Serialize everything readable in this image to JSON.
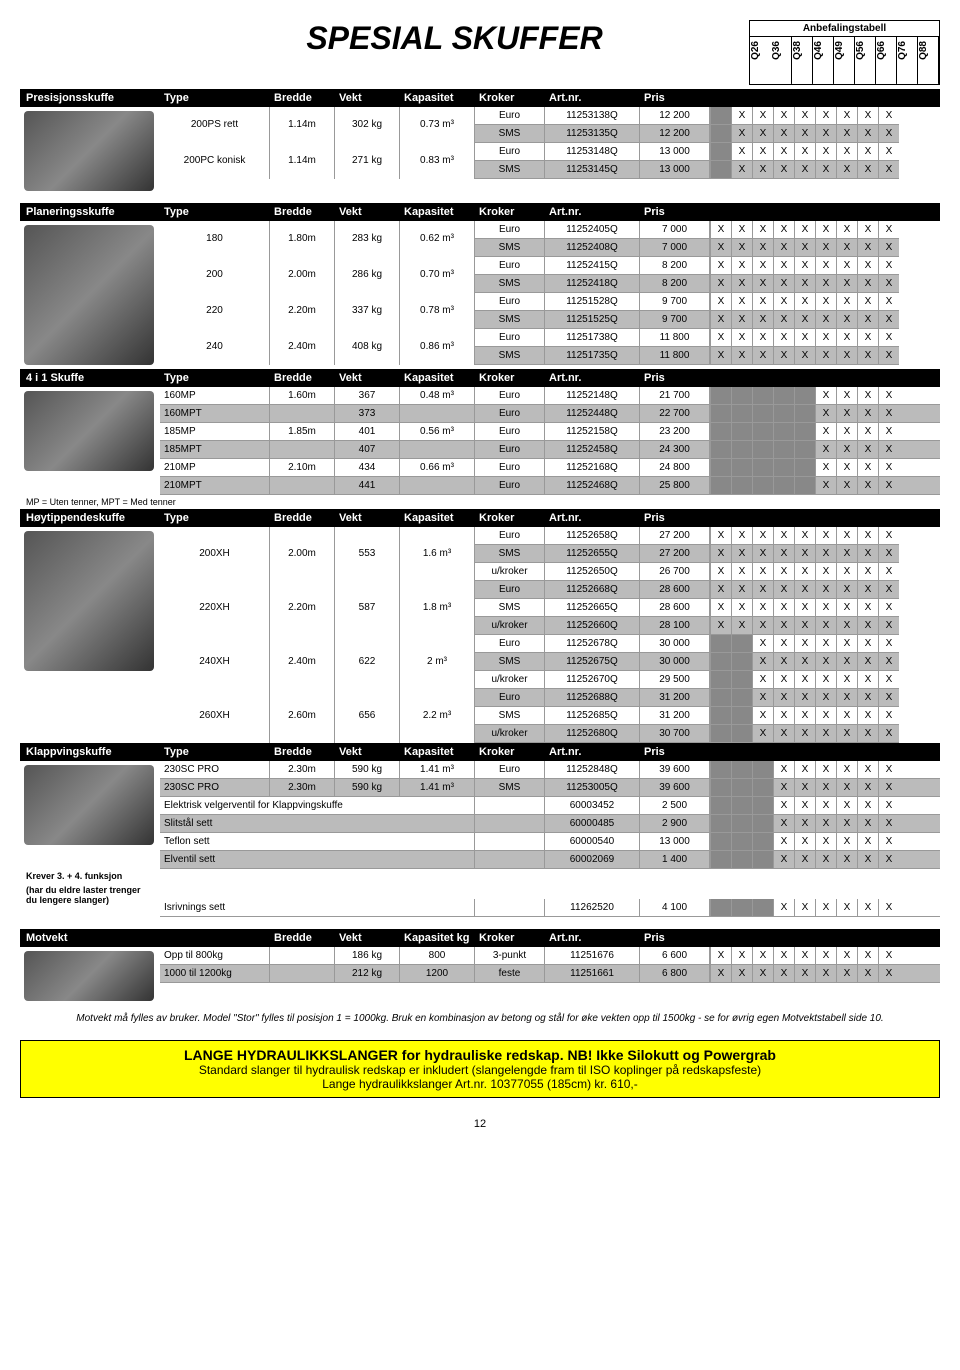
{
  "title": "SPESIAL SKUFFER",
  "rec_label": "Anbefalingstabell",
  "rec_models": [
    "Q26",
    "Q36",
    "Q38",
    "Q46",
    "Q49",
    "Q56",
    "Q66",
    "Q76",
    "Q88"
  ],
  "headers": {
    "type": "Type",
    "bredde": "Bredde",
    "vekt": "Vekt",
    "kap": "Kapasitet",
    "kroker": "Kroker",
    "artnr": "Art.nr.",
    "pris": "Pris",
    "kapkg": "Kapasitet kg"
  },
  "sections": {
    "presisjon": {
      "label": "Presisjonsskuffe",
      "groups": [
        {
          "type": "200PS rett",
          "bredde": "1.14m",
          "vekt": "302 kg",
          "kap": "0.73 m³",
          "rows": [
            {
              "kroker": "Euro",
              "artnr": "11253138Q",
              "pris": "12 200",
              "x": [
                0,
                1,
                1,
                1,
                1,
                1,
                1,
                1,
                1
              ],
              "shade": false
            },
            {
              "kroker": "SMS",
              "artnr": "11253135Q",
              "pris": "12 200",
              "x": [
                0,
                1,
                1,
                1,
                1,
                1,
                1,
                1,
                1
              ],
              "shade": true
            }
          ]
        },
        {
          "type": "200PC konisk",
          "bredde": "1.14m",
          "vekt": "271 kg",
          "kap": "0.83 m³",
          "rows": [
            {
              "kroker": "Euro",
              "artnr": "11253148Q",
              "pris": "13 000",
              "x": [
                0,
                1,
                1,
                1,
                1,
                1,
                1,
                1,
                1
              ],
              "shade": false
            },
            {
              "kroker": "SMS",
              "artnr": "11253145Q",
              "pris": "13 000",
              "x": [
                0,
                1,
                1,
                1,
                1,
                1,
                1,
                1,
                1
              ],
              "shade": true
            }
          ]
        }
      ]
    },
    "planering": {
      "label": "Planeringsskuffe",
      "groups": [
        {
          "type": "180",
          "bredde": "1.80m",
          "vekt": "283 kg",
          "kap": "0.62 m³",
          "rows": [
            {
              "kroker": "Euro",
              "artnr": "11252405Q",
              "pris": "7 000",
              "x": [
                1,
                1,
                1,
                1,
                1,
                1,
                1,
                1,
                1
              ],
              "shade": false
            },
            {
              "kroker": "SMS",
              "artnr": "11252408Q",
              "pris": "7 000",
              "x": [
                1,
                1,
                1,
                1,
                1,
                1,
                1,
                1,
                1
              ],
              "shade": true
            }
          ]
        },
        {
          "type": "200",
          "bredde": "2.00m",
          "vekt": "286 kg",
          "kap": "0.70 m³",
          "rows": [
            {
              "kroker": "Euro",
              "artnr": "11252415Q",
              "pris": "8 200",
              "x": [
                1,
                1,
                1,
                1,
                1,
                1,
                1,
                1,
                1
              ],
              "shade": false
            },
            {
              "kroker": "SMS",
              "artnr": "11252418Q",
              "pris": "8 200",
              "x": [
                1,
                1,
                1,
                1,
                1,
                1,
                1,
                1,
                1
              ],
              "shade": true
            }
          ]
        },
        {
          "type": "220",
          "bredde": "2.20m",
          "vekt": "337 kg",
          "kap": "0.78 m³",
          "rows": [
            {
              "kroker": "Euro",
              "artnr": "11251528Q",
              "pris": "9 700",
              "x": [
                1,
                1,
                1,
                1,
                1,
                1,
                1,
                1,
                1
              ],
              "shade": false
            },
            {
              "kroker": "SMS",
              "artnr": "11251525Q",
              "pris": "9 700",
              "x": [
                1,
                1,
                1,
                1,
                1,
                1,
                1,
                1,
                1
              ],
              "shade": true
            }
          ]
        },
        {
          "type": "240",
          "bredde": "2.40m",
          "vekt": "408 kg",
          "kap": "0.86 m³",
          "rows": [
            {
              "kroker": "Euro",
              "artnr": "11251738Q",
              "pris": "11 800",
              "x": [
                1,
                1,
                1,
                1,
                1,
                1,
                1,
                1,
                1
              ],
              "shade": false
            },
            {
              "kroker": "SMS",
              "artnr": "11251735Q",
              "pris": "11 800",
              "x": [
                1,
                1,
                1,
                1,
                1,
                1,
                1,
                1,
                1
              ],
              "shade": true
            }
          ]
        }
      ]
    },
    "fire_i_en": {
      "label": "4 i 1 Skuffe",
      "note": "MP = Uten tenner, MPT = Med tenner",
      "rows": [
        {
          "type": "160MP",
          "bredde": "1.60m",
          "vekt": "367",
          "kap": "0.48 m³",
          "kroker": "Euro",
          "artnr": "11252148Q",
          "pris": "21 700",
          "x": [
            0,
            0,
            0,
            0,
            0,
            1,
            1,
            1,
            1
          ],
          "shade": false,
          "span": true
        },
        {
          "type": "160MPT",
          "bredde": "",
          "vekt": "373",
          "kap": "",
          "kroker": "Euro",
          "artnr": "11252448Q",
          "pris": "22 700",
          "x": [
            0,
            0,
            0,
            0,
            0,
            1,
            1,
            1,
            1
          ],
          "shade": true
        },
        {
          "type": "185MP",
          "bredde": "1.85m",
          "vekt": "401",
          "kap": "0.56 m³",
          "kroker": "Euro",
          "artnr": "11252158Q",
          "pris": "23 200",
          "x": [
            0,
            0,
            0,
            0,
            0,
            1,
            1,
            1,
            1
          ],
          "shade": false,
          "span": true
        },
        {
          "type": "185MPT",
          "bredde": "",
          "vekt": "407",
          "kap": "",
          "kroker": "Euro",
          "artnr": "11252458Q",
          "pris": "24 300",
          "x": [
            0,
            0,
            0,
            0,
            0,
            1,
            1,
            1,
            1
          ],
          "shade": true
        },
        {
          "type": "210MP",
          "bredde": "2.10m",
          "vekt": "434",
          "kap": "0.66 m³",
          "kroker": "Euro",
          "artnr": "11252168Q",
          "pris": "24 800",
          "x": [
            0,
            0,
            0,
            0,
            0,
            1,
            1,
            1,
            1
          ],
          "shade": false,
          "span": true
        },
        {
          "type": "210MPT",
          "bredde": "",
          "vekt": "441",
          "kap": "",
          "kroker": "Euro",
          "artnr": "11252468Q",
          "pris": "25 800",
          "x": [
            0,
            0,
            0,
            0,
            0,
            1,
            1,
            1,
            1
          ],
          "shade": true
        }
      ]
    },
    "hoytipp": {
      "label": "Høytippendeskuffe",
      "groups": [
        {
          "type": "200XH",
          "bredde": "2.00m",
          "vekt": "553",
          "kap": "1.6 m³",
          "rows": [
            {
              "kroker": "Euro",
              "artnr": "11252658Q",
              "pris": "27 200",
              "x": [
                1,
                1,
                1,
                1,
                1,
                1,
                1,
                1,
                1
              ],
              "shade": false
            },
            {
              "kroker": "SMS",
              "artnr": "11252655Q",
              "pris": "27 200",
              "x": [
                1,
                1,
                1,
                1,
                1,
                1,
                1,
                1,
                1
              ],
              "shade": true
            },
            {
              "kroker": "u/kroker",
              "artnr": "11252650Q",
              "pris": "26 700",
              "x": [
                1,
                1,
                1,
                1,
                1,
                1,
                1,
                1,
                1
              ],
              "shade": false
            }
          ]
        },
        {
          "type": "220XH",
          "bredde": "2.20m",
          "vekt": "587",
          "kap": "1.8 m³",
          "rows": [
            {
              "kroker": "Euro",
              "artnr": "11252668Q",
              "pris": "28 600",
              "x": [
                1,
                1,
                1,
                1,
                1,
                1,
                1,
                1,
                1
              ],
              "shade": true
            },
            {
              "kroker": "SMS",
              "artnr": "11252665Q",
              "pris": "28 600",
              "x": [
                1,
                1,
                1,
                1,
                1,
                1,
                1,
                1,
                1
              ],
              "shade": false
            },
            {
              "kroker": "u/kroker",
              "artnr": "11252660Q",
              "pris": "28 100",
              "x": [
                1,
                1,
                1,
                1,
                1,
                1,
                1,
                1,
                1
              ],
              "shade": true
            }
          ]
        },
        {
          "type": "240XH",
          "bredde": "2.40m",
          "vekt": "622",
          "kap": "2 m³",
          "rows": [
            {
              "kroker": "Euro",
              "artnr": "11252678Q",
              "pris": "30 000",
              "x": [
                0,
                0,
                1,
                1,
                1,
                1,
                1,
                1,
                1
              ],
              "shade": false
            },
            {
              "kroker": "SMS",
              "artnr": "11252675Q",
              "pris": "30 000",
              "x": [
                0,
                0,
                1,
                1,
                1,
                1,
                1,
                1,
                1
              ],
              "shade": true
            },
            {
              "kroker": "u/kroker",
              "artnr": "11252670Q",
              "pris": "29 500",
              "x": [
                0,
                0,
                1,
                1,
                1,
                1,
                1,
                1,
                1
              ],
              "shade": false
            }
          ]
        },
        {
          "type": "260XH",
          "bredde": "2.60m",
          "vekt": "656",
          "kap": "2.2 m³",
          "rows": [
            {
              "kroker": "Euro",
              "artnr": "11252688Q",
              "pris": "31 200",
              "x": [
                0,
                0,
                1,
                1,
                1,
                1,
                1,
                1,
                1
              ],
              "shade": true
            },
            {
              "kroker": "SMS",
              "artnr": "11252685Q",
              "pris": "31 200",
              "x": [
                0,
                0,
                1,
                1,
                1,
                1,
                1,
                1,
                1
              ],
              "shade": false
            },
            {
              "kroker": "u/kroker",
              "artnr": "11252680Q",
              "pris": "30 700",
              "x": [
                0,
                0,
                1,
                1,
                1,
                1,
                1,
                1,
                1
              ],
              "shade": true
            }
          ]
        }
      ]
    },
    "klappving": {
      "label": "Klappvingskuffe",
      "rows": [
        {
          "type": "230SC PRO",
          "bredde": "2.30m",
          "vekt": "590 kg",
          "kap": "1.41 m³",
          "kroker": "Euro",
          "artnr": "11252848Q",
          "pris": "39 600",
          "x": [
            0,
            0,
            0,
            1,
            1,
            1,
            1,
            1,
            1
          ],
          "shade": false
        },
        {
          "type": "230SC PRO",
          "bredde": "2.30m",
          "vekt": "590 kg",
          "kap": "1.41 m³",
          "kroker": "SMS",
          "artnr": "11253005Q",
          "pris": "39 600",
          "x": [
            0,
            0,
            0,
            1,
            1,
            1,
            1,
            1,
            1
          ],
          "shade": true
        },
        {
          "type": "Elektrisk velgerventil for Klappvingskuffe",
          "wide": true,
          "artnr": "60003452",
          "pris": "2 500",
          "x": [
            0,
            0,
            0,
            1,
            1,
            1,
            1,
            1,
            1
          ],
          "shade": false
        },
        {
          "type": "Slitstål sett",
          "wide": true,
          "artnr": "60000485",
          "pris": "2 900",
          "x": [
            0,
            0,
            0,
            1,
            1,
            1,
            1,
            1,
            1
          ],
          "shade": true
        },
        {
          "type": "Teflon sett",
          "wide": true,
          "artnr": "60000540",
          "pris": "13 000",
          "x": [
            0,
            0,
            0,
            1,
            1,
            1,
            1,
            1,
            1
          ],
          "shade": false
        },
        {
          "type": "Elventil sett",
          "wide": true,
          "artnr": "60002069",
          "pris": "1 400",
          "x": [
            0,
            0,
            0,
            1,
            1,
            1,
            1,
            1,
            1
          ],
          "shade": true
        }
      ],
      "note1": "Krever 3. + 4. funksjon",
      "note2": "(har du eldre laster trenger du lengere slanger)",
      "isrivning": {
        "type": "Isrivnings sett",
        "artnr": "11262520",
        "pris": "4 100",
        "x": [
          0,
          0,
          0,
          1,
          1,
          1,
          1,
          1,
          1
        ]
      }
    },
    "motvekt": {
      "label": "Motvekt",
      "rows": [
        {
          "type": "Opp til 800kg",
          "vekt": "186 kg",
          "kap": "800",
          "kroker": "3-punkt",
          "artnr": "11251676",
          "pris": "6 600",
          "x": [
            1,
            1,
            1,
            1,
            1,
            1,
            1,
            1,
            1
          ],
          "shade": false
        },
        {
          "type": "1000 til 1200kg",
          "vekt": "212 kg",
          "kap": "1200",
          "kroker": "feste",
          "artnr": "11251661",
          "pris": "6 800",
          "x": [
            1,
            1,
            1,
            1,
            1,
            1,
            1,
            1,
            1
          ],
          "shade": true
        }
      ],
      "note": "Motvekt må fylles av bruker.  Model \"Stor\" fylles til posisjon 1 = 1000kg. Bruk en kombinasjon av betong og stål for øke vekten opp til 1500kg - se for øvrig egen Motvektstabell side 10."
    }
  },
  "yellow": {
    "h": "LANGE HYDRAULIKKSLANGER for hydrauliske redskap. NB! Ikke Silokutt og Powergrab",
    "b1": "Standard slanger til hydraulisk redskap er inkludert (slangelengde fram til ISO koplinger på redskapsfeste)",
    "b2": "Lange hydraulikkslanger Art.nr. 10377055 (185cm) kr. 610,-"
  },
  "page_num": "12"
}
